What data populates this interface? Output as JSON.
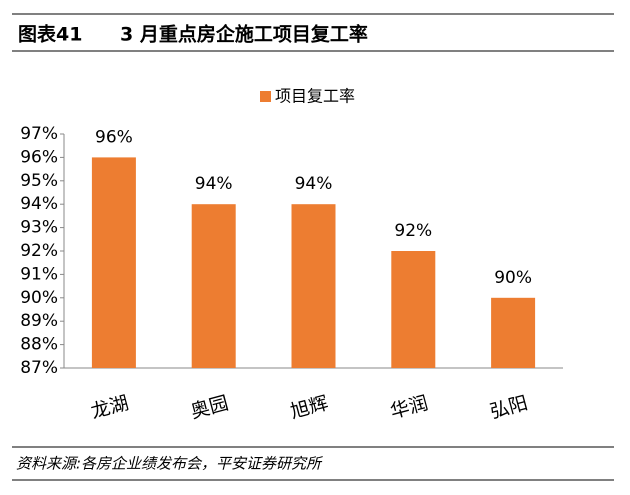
{
  "chart_data": {
    "type": "bar",
    "figure_label": "图表41",
    "title": "3 月重点房企施工项目复工率",
    "source": "资料来源:各房企业绩发布会，平安证券研究所",
    "categories": [
      "龙湖",
      "奥园",
      "旭辉",
      "华润",
      "弘阳"
    ],
    "series": [
      {
        "name": "项目复工率",
        "color": "#ed7d31",
        "values": [
          96,
          94,
          94,
          92,
          90
        ],
        "value_labels": [
          "96%",
          "94%",
          "94%",
          "92%",
          "90%"
        ]
      }
    ],
    "ylim": [
      87,
      97
    ],
    "yticks": [
      {
        "value": 87,
        "label": "87%"
      },
      {
        "value": 88,
        "label": "88%"
      },
      {
        "value": 89,
        "label": "89%"
      },
      {
        "value": 90,
        "label": "90%"
      },
      {
        "value": 91,
        "label": "91%"
      },
      {
        "value": 92,
        "label": "92%"
      },
      {
        "value": 93,
        "label": "93%"
      },
      {
        "value": 94,
        "label": "94%"
      },
      {
        "value": 95,
        "label": "95%"
      },
      {
        "value": 96,
        "label": "96%"
      },
      {
        "value": 97,
        "label": "97%"
      }
    ],
    "grid": false,
    "legend": "top"
  }
}
